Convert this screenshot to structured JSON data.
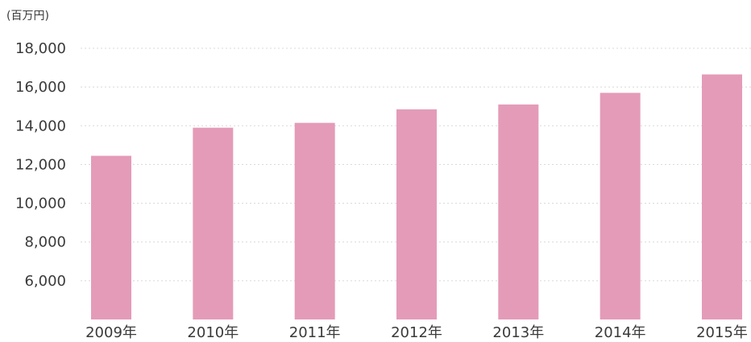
{
  "chart_data": {
    "type": "bar",
    "unit_label": "(百万円)",
    "categories": [
      "2009年",
      "2010年",
      "2011年",
      "2012年",
      "2013年",
      "2014年",
      "2015年"
    ],
    "values": [
      12450,
      13900,
      14150,
      14850,
      15100,
      15700,
      16650
    ],
    "ylim": [
      4000,
      18000
    ],
    "yticks": [
      6000,
      8000,
      10000,
      12000,
      14000,
      16000,
      18000
    ],
    "ytick_labels": [
      "6,000",
      "8,000",
      "10,000",
      "12,000",
      "14,000",
      "16,000",
      "18,000"
    ],
    "grid": true,
    "bar_color": "#e49bb8"
  }
}
